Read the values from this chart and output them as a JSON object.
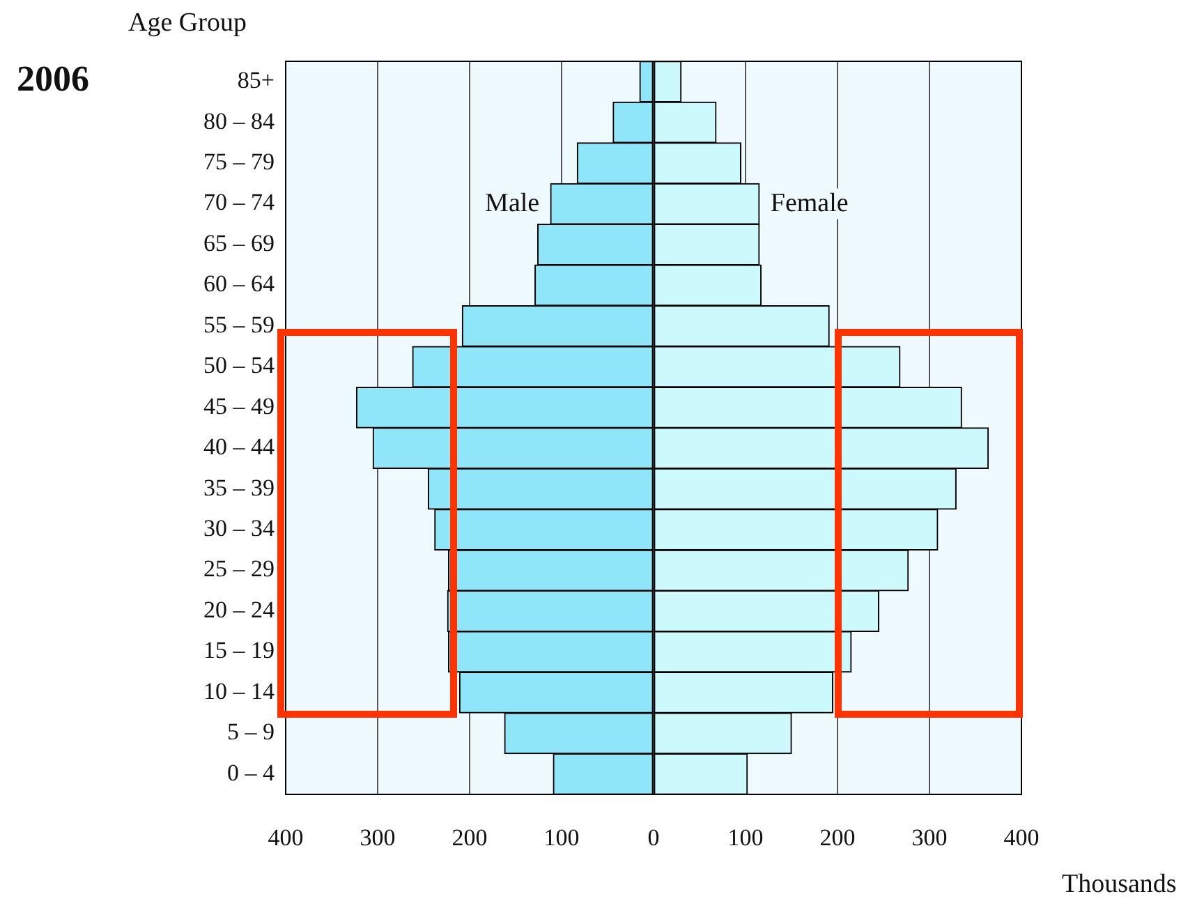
{
  "chart_data": {
    "type": "bar",
    "orientation": "horizontal",
    "stacked": true,
    "title": "2006",
    "ylabel": "Age Group",
    "xlabel": "Thousands",
    "categories": [
      "85+",
      "80 – 84",
      "75 – 79",
      "70 – 74",
      "65 – 69",
      "60 – 64",
      "55 – 59",
      "50 – 54",
      "45 – 49",
      "40 – 44",
      "35 – 39",
      "30 – 34",
      "25 – 29",
      "20 – 24",
      "15 – 19",
      "10 – 14",
      "5 – 9",
      "0 – 4"
    ],
    "series": [
      {
        "name": "Male",
        "color": "#8ee6f8",
        "values": [
          -15,
          -44,
          -83,
          -112,
          -126,
          -129,
          -208,
          -262,
          -323,
          -305,
          -245,
          -238,
          -223,
          -224,
          -223,
          -211,
          -162,
          -109
        ]
      },
      {
        "name": "Female",
        "color": "#ccf9fc",
        "values": [
          30,
          68,
          95,
          115,
          115,
          117,
          191,
          268,
          335,
          364,
          329,
          309,
          277,
          245,
          215,
          195,
          150,
          102
        ]
      }
    ],
    "xlim": [
      -400,
      400
    ],
    "xticks": [
      {
        "value": -400,
        "label": "400"
      },
      {
        "value": -300,
        "label": "300"
      },
      {
        "value": -200,
        "label": "200"
      },
      {
        "value": -100,
        "label": "100"
      },
      0,
      100,
      200,
      300,
      400
    ],
    "grid": "x",
    "legend": false
  }
}
